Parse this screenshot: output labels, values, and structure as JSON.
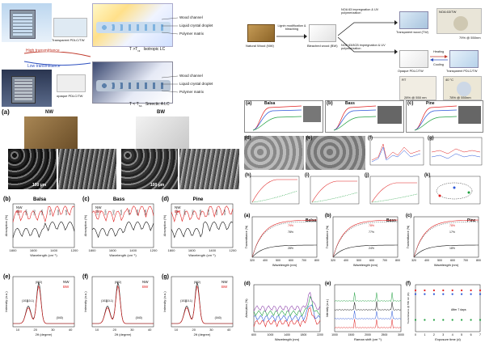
{
  "top_scheme": {
    "high_label": "High transmittance",
    "low_label": "Low transmittance",
    "transparent_label": "Transparent PDLC/TW",
    "opaque_label": "opaque PDLC/TW",
    "layer_labels": [
      "Wood channel",
      "Liquid crystal droplet",
      "Polymer matrix"
    ],
    "top_condition": "T >T",
    "top_condition_sub": "NI",
    "top_phase": "Isotropic LC",
    "bottom_condition": "T < T",
    "bottom_condition_sub": "SA",
    "bottom_phase": "Smectic A LC",
    "sunlight": "Sunlight",
    "uv": "UV"
  },
  "process": {
    "natural_wood": "Natural Wood (NW)",
    "bleached_wood": "Bleached wood (BW)",
    "step1": "Lignin modification & bleaching",
    "step2a": "NOA 63 impregnation & UV polymerization",
    "step2b": "NOA 63/8CB impregnation & UV polymerization",
    "transparent_wood": "Transparent wood (TW)",
    "opaque_pdlc": "Opaque PDLC/TW",
    "heating": "Heating",
    "cooling": "Cooling",
    "transparent_pdlc": "Transparent PDLC/TW",
    "noa_tw": "NOA 63/TW",
    "t_room": "RT",
    "t_hot": "40 °C",
    "p1": "79% @ 550nm",
    "p2": "28% @ 550 nm",
    "p3": "78% @ 550nm"
  },
  "panel_a": {
    "letter": "(a)",
    "nw": "NW",
    "bw": "BW",
    "scale1": "100 μm",
    "scale2": "100 μm"
  },
  "ftir": [
    {
      "letter": "(b)",
      "title": "Balsa",
      "xlabel": "Wavelength (cm⁻¹)",
      "ylabel": "Absorption (%)",
      "xticks": [
        "1800",
        "1600",
        "1400",
        "1200"
      ],
      "peaks": [
        "1720",
        "1594",
        "1462",
        "1425",
        "1370",
        "1329",
        "1235"
      ]
    },
    {
      "letter": "(c)",
      "title": "Bass",
      "xlabel": "Wavelength (cm⁻¹)",
      "ylabel": "Absorption (%)",
      "xticks": [
        "1800",
        "1600",
        "1400",
        "1200"
      ],
      "peaks": [
        "1720",
        "1594",
        "1462",
        "1425",
        "1370",
        "1329",
        "1235"
      ]
    },
    {
      "letter": "(d)",
      "title": "Pine",
      "xlabel": "Wavelength (cm⁻¹)",
      "ylabel": "Absorption (%)",
      "xticks": [
        "1800",
        "1600",
        "1400",
        "1200"
      ],
      "peaks": [
        "1720",
        "1594",
        "1462",
        "1425",
        "1370",
        "1329",
        "1235"
      ]
    }
  ],
  "xrd": [
    {
      "letter": "(e)",
      "xlabel": "2θ (degree)",
      "ylabel": "Intensity (a.u.)",
      "xticks": [
        "10",
        "20",
        "30",
        "40"
      ],
      "peaks": [
        "(101)",
        "(10-1)",
        "(002)",
        "(040)"
      ]
    },
    {
      "letter": "(f)",
      "xlabel": "2θ (degree)",
      "ylabel": "Intensity (a.u.)",
      "xticks": [
        "10",
        "20",
        "30",
        "40"
      ],
      "peaks": [
        "(101)",
        "(10-1)",
        "(002)",
        "(040)"
      ]
    },
    {
      "letter": "(g)",
      "xlabel": "2θ (degree)",
      "ylabel": "Intensity (a.u.)",
      "xticks": [
        "10",
        "20",
        "30",
        "40"
      ],
      "peaks": [
        "(101)",
        "(10-1)",
        "(002)",
        "(040)"
      ]
    }
  ],
  "legend": {
    "nw": "NW",
    "bw": "BW"
  },
  "right_top": {
    "species": [
      "Balsa",
      "Bass",
      "Pine"
    ],
    "letters": [
      "(a)",
      "(b)",
      "(c)",
      "(d)",
      "(e)",
      "(f)",
      "(g)",
      "(h)",
      "(i)",
      "(j)",
      "(k)"
    ]
  },
  "right_bottom": {
    "letters": [
      "(a)",
      "(b)",
      "(c)",
      "(d)",
      "(e)",
      "(f)"
    ],
    "titles": [
      "Balsa",
      "Bass",
      "Pine"
    ],
    "xlabel_wl": "Wavelength (nm)",
    "ylabel_tr": "Transmittance (%)",
    "xticks_wl": [
      "320",
      "400",
      "500",
      "600",
      "700",
      "800"
    ],
    "xlabel_wl2": "Wavelength (nm)",
    "xticks_wl2": [
      "600",
      "1000",
      "1400",
      "1800",
      "2200"
    ],
    "xlabel_raman": "Raman shift (cm⁻¹)",
    "xticks_raman": [
      "1000",
      "1500",
      "2000",
      "2500",
      "3000"
    ],
    "xlabel_time": "Exposure time (d)",
    "xticks_time": [
      "0",
      "1",
      "2",
      "3",
      "4",
      "5",
      "6",
      "7"
    ],
    "ylabel_abs": "Absorption (%)",
    "ylabel_int": "Intensity (a.u.)",
    "ylabel_t550": "Transmittance @ 550 nm (%)",
    "after_days": "After 7 days",
    "pct_labels_a": [
      "79%",
      "28%",
      "78%"
    ],
    "pct_labels_b": [
      "78%",
      "24%",
      "77%"
    ],
    "pct_labels_c": [
      "78%",
      "18%",
      "17%"
    ]
  },
  "colors": {
    "nw": "#111111",
    "bw": "#e02020",
    "blue": "#2a55d8",
    "green": "#20a040"
  }
}
